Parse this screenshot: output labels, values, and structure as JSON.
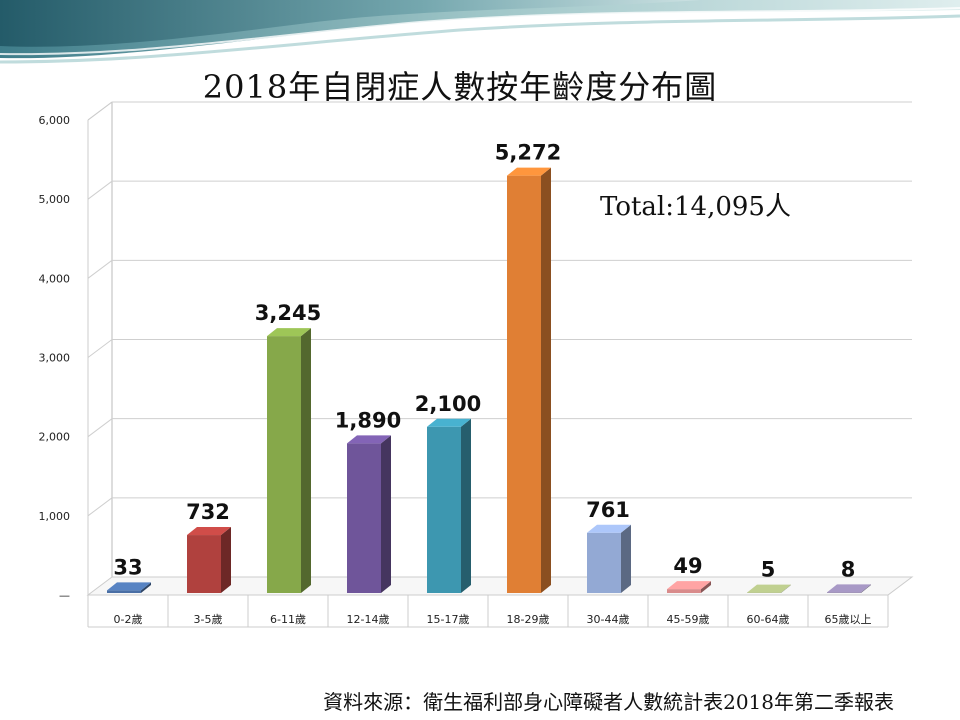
{
  "chart_data": {
    "type": "bar",
    "title": "2018年自閉症人數按年齡度分布圖",
    "categories": [
      "0-2歲",
      "3-5歲",
      "6-11歲",
      "12-14歲",
      "15-17歲",
      "18-29歲",
      "30-44歲",
      "45-59歲",
      "60-64歲",
      "65歲以上"
    ],
    "values": [
      33,
      732,
      3245,
      1890,
      2100,
      5272,
      761,
      49,
      5,
      8
    ],
    "value_labels": [
      "33",
      "732",
      "3,245",
      "1,890",
      "2,100",
      "5,272",
      "761",
      "49",
      "5",
      "8"
    ],
    "ylim": [
      0,
      6000
    ],
    "yticks": [
      1000,
      2000,
      3000,
      4000,
      5000,
      6000
    ],
    "ytick_labels": [
      "1,000",
      "2,000",
      "3,000",
      "4,000",
      "5,000",
      "6,000"
    ],
    "zero_label": "—",
    "grid": true,
    "legend": "none",
    "colors": [
      "#4a6fa5",
      "#b0413e",
      "#86a84a",
      "#6f559a",
      "#3d97b0",
      "#e07f34",
      "#93a9d4",
      "#d98b8b",
      "#a3b07a",
      "#8e82a8"
    ],
    "annotation": "Total:14,095人"
  },
  "source": "資料來源：衛生福利部身心障礙者人數統計表2018年第二季報表"
}
